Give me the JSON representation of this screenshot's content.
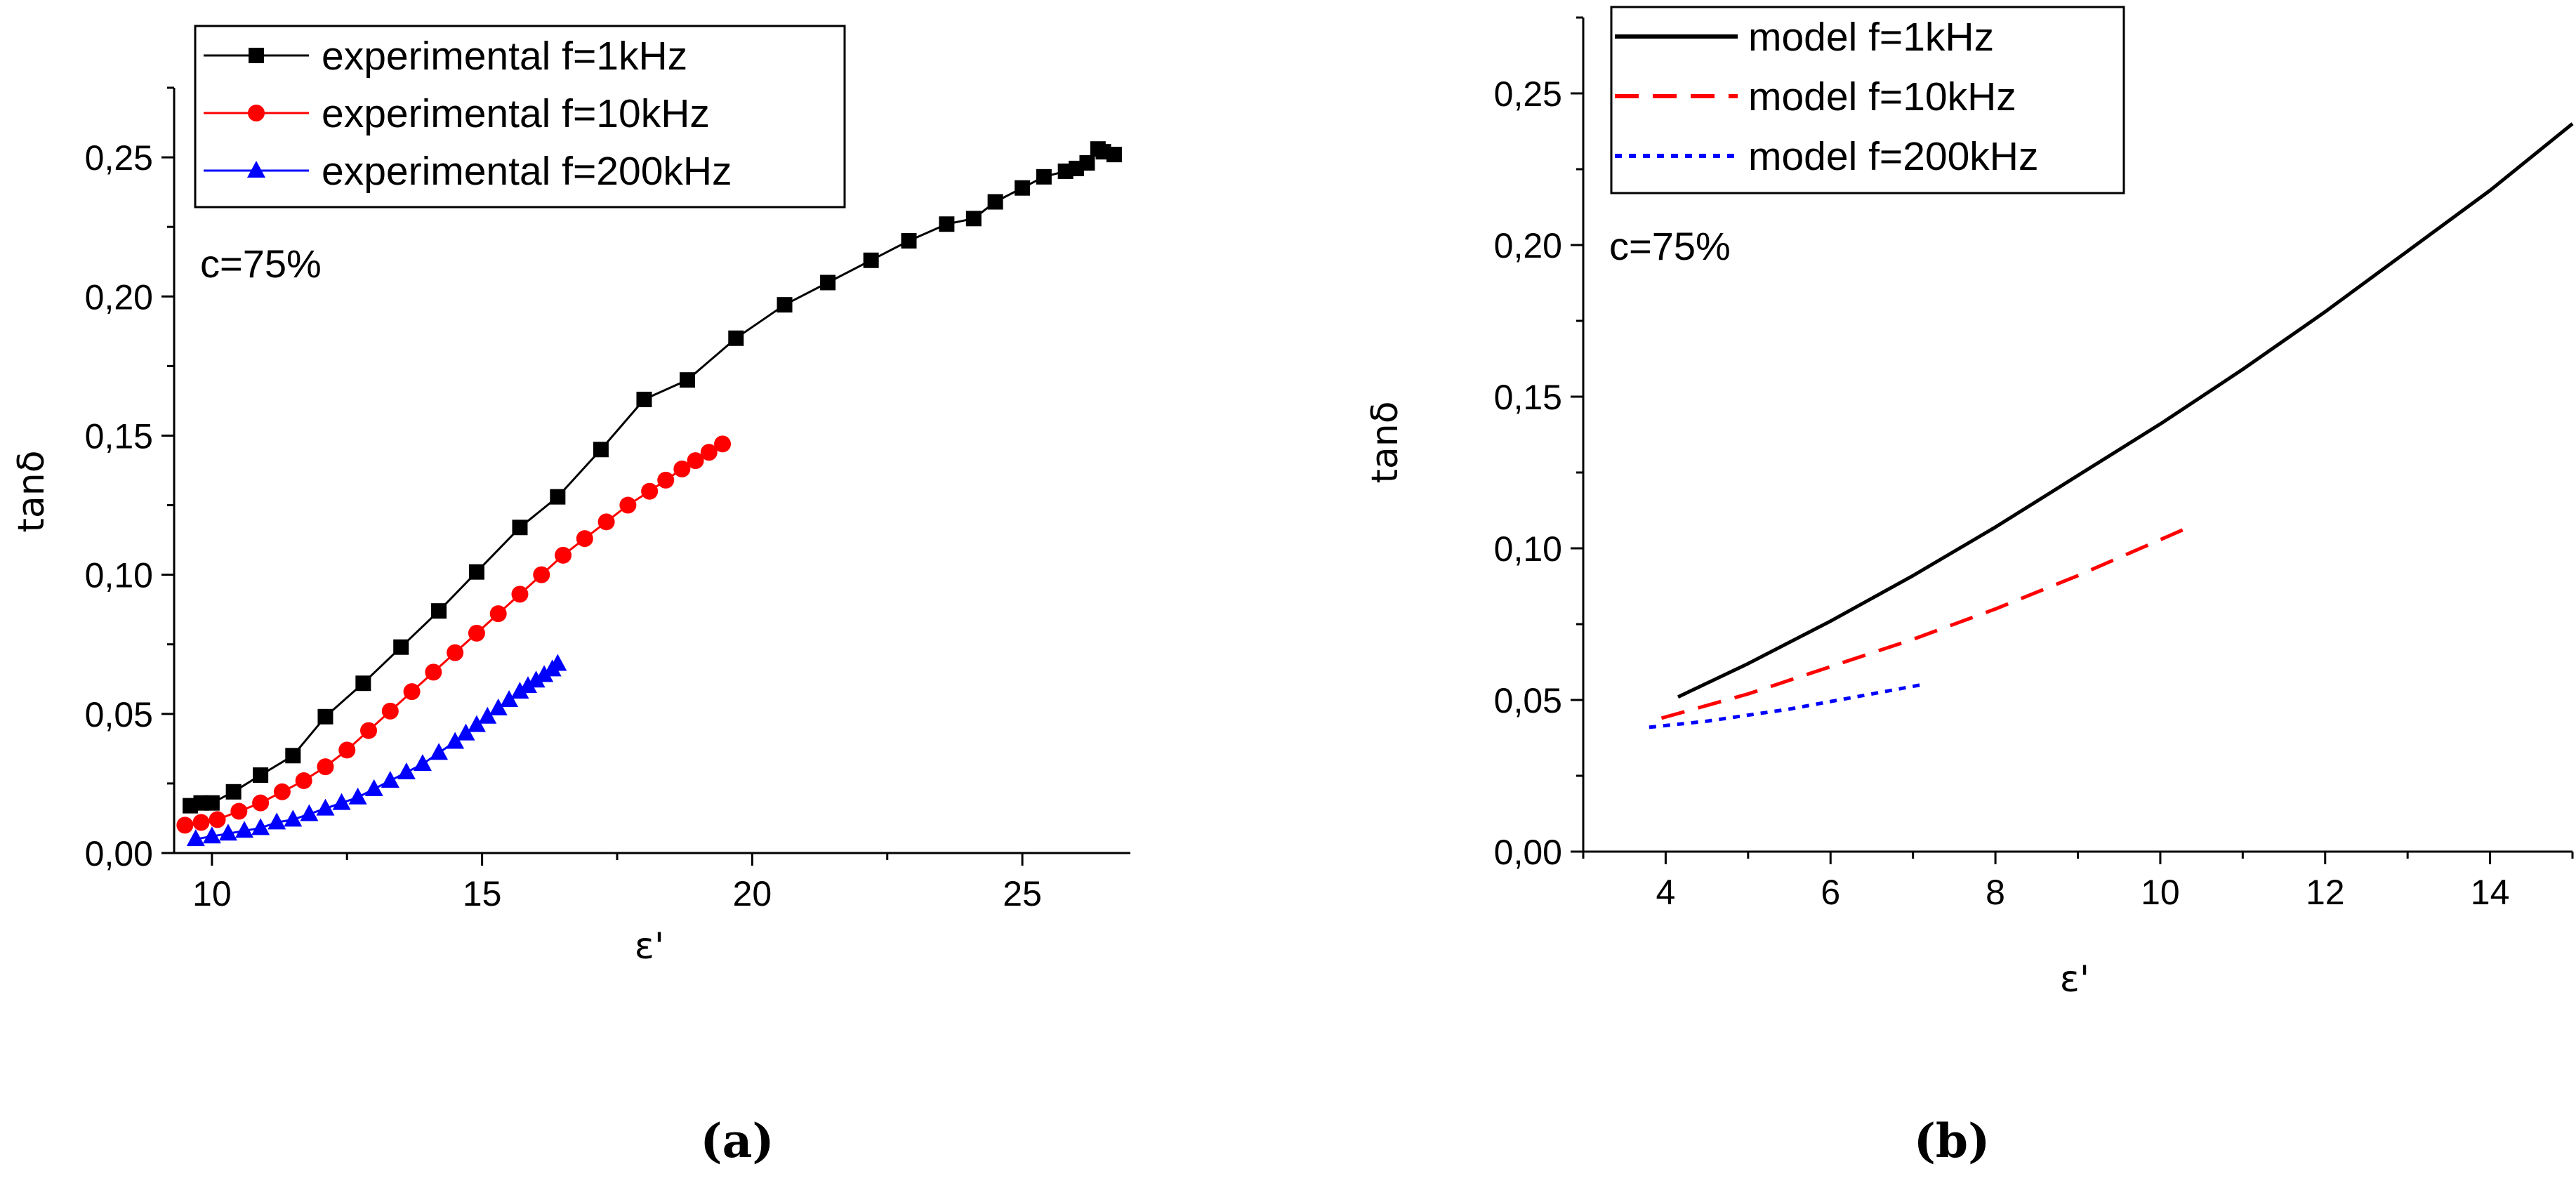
{
  "chart_data": [
    {
      "type": "line",
      "panel_label": "(a)",
      "xlabel": "ε'",
      "ylabel": "tanδ",
      "annotation": "c=75%",
      "xlim": [
        9.3,
        27.0
      ],
      "ylim": [
        0.0,
        0.275
      ],
      "x_ticks": [
        10,
        15,
        20,
        25
      ],
      "x_tick_labels": [
        "10",
        "15",
        "20",
        "25"
      ],
      "y_ticks": [
        0.0,
        0.05,
        0.1,
        0.15,
        0.2,
        0.25
      ],
      "y_tick_labels": [
        "0,00",
        "0,05",
        "0,10",
        "0,15",
        "0,20",
        "0,25"
      ],
      "legend_position": "top-left",
      "series": [
        {
          "name": "experimental f=1kHz",
          "color": "#000000",
          "marker": "square",
          "x": [
            9.6,
            9.8,
            10.0,
            10.4,
            10.9,
            11.5,
            12.1,
            12.8,
            13.5,
            14.2,
            14.9,
            15.7,
            16.4,
            17.2,
            18.0,
            18.8,
            19.7,
            20.6,
            21.4,
            22.2,
            22.9,
            23.6,
            24.1,
            24.5,
            25.0,
            25.4,
            25.8,
            26.0,
            26.2,
            26.4,
            26.5,
            26.7
          ],
          "values": [
            0.017,
            0.018,
            0.018,
            0.022,
            0.028,
            0.035,
            0.049,
            0.061,
            0.074,
            0.087,
            0.101,
            0.117,
            0.128,
            0.145,
            0.163,
            0.17,
            0.185,
            0.197,
            0.205,
            0.213,
            0.22,
            0.226,
            0.228,
            0.234,
            0.239,
            0.243,
            0.245,
            0.246,
            0.248,
            0.253,
            0.252,
            0.251
          ]
        },
        {
          "name": "experimental f=10kHz",
          "color": "#ff0000",
          "marker": "circle",
          "x": [
            9.5,
            9.8,
            10.1,
            10.5,
            10.9,
            11.3,
            11.7,
            12.1,
            12.5,
            12.9,
            13.3,
            13.7,
            14.1,
            14.5,
            14.9,
            15.3,
            15.7,
            16.1,
            16.5,
            16.9,
            17.3,
            17.7,
            18.1,
            18.4,
            18.7,
            18.95,
            19.2,
            19.45
          ],
          "values": [
            0.01,
            0.011,
            0.012,
            0.015,
            0.018,
            0.022,
            0.026,
            0.031,
            0.037,
            0.044,
            0.051,
            0.058,
            0.065,
            0.072,
            0.079,
            0.086,
            0.093,
            0.1,
            0.107,
            0.113,
            0.119,
            0.125,
            0.13,
            0.134,
            0.138,
            0.141,
            0.144,
            0.147
          ]
        },
        {
          "name": "experimental f=200kHz",
          "color": "#0000ff",
          "marker": "triangle",
          "x": [
            9.7,
            10.0,
            10.3,
            10.6,
            10.9,
            11.2,
            11.5,
            11.8,
            12.1,
            12.4,
            12.7,
            13.0,
            13.3,
            13.6,
            13.9,
            14.2,
            14.5,
            14.7,
            14.9,
            15.1,
            15.3,
            15.5,
            15.7,
            15.85,
            16.0,
            16.15,
            16.3,
            16.4
          ],
          "values": [
            0.005,
            0.006,
            0.007,
            0.008,
            0.009,
            0.011,
            0.012,
            0.014,
            0.016,
            0.018,
            0.02,
            0.023,
            0.026,
            0.029,
            0.032,
            0.036,
            0.04,
            0.043,
            0.046,
            0.049,
            0.052,
            0.055,
            0.058,
            0.06,
            0.062,
            0.064,
            0.066,
            0.068
          ]
        }
      ]
    },
    {
      "type": "line",
      "panel_label": "(b)",
      "xlabel": "ε'",
      "ylabel": "tanδ",
      "annotation": "c=75%",
      "xlim": [
        3.0,
        15.0
      ],
      "ylim": [
        0.0,
        0.275
      ],
      "x_ticks": [
        4,
        6,
        8,
        10,
        12,
        14
      ],
      "x_tick_labels": [
        "4",
        "6",
        "8",
        "10",
        "12",
        "14"
      ],
      "y_ticks": [
        0.0,
        0.05,
        0.1,
        0.15,
        0.2,
        0.25
      ],
      "y_tick_labels": [
        "0,00",
        "0,05",
        "0,10",
        "0,15",
        "0,20",
        "0,25"
      ],
      "legend_position": "top-left",
      "series": [
        {
          "name": "model f=1kHz",
          "color": "#000000",
          "style": "solid",
          "x": [
            4.15,
            5.0,
            6.0,
            7.0,
            8.0,
            9.0,
            10.0,
            11.0,
            12.0,
            13.0,
            14.0,
            15.0
          ],
          "values": [
            0.051,
            0.062,
            0.076,
            0.091,
            0.107,
            0.124,
            0.141,
            0.159,
            0.178,
            0.198,
            0.218,
            0.24
          ]
        },
        {
          "name": "model f=10kHz",
          "color": "#ff0000",
          "style": "dashed",
          "x": [
            3.95,
            5.0,
            6.0,
            7.0,
            8.0,
            9.0,
            10.35
          ],
          "values": [
            0.044,
            0.052,
            0.061,
            0.07,
            0.08,
            0.091,
            0.107
          ]
        },
        {
          "name": "model f=200kHz",
          "color": "#0000ff",
          "style": "dotted",
          "x": [
            3.8,
            4.5,
            5.5,
            6.5,
            7.1
          ],
          "values": [
            0.041,
            0.043,
            0.047,
            0.052,
            0.055
          ]
        }
      ]
    }
  ]
}
